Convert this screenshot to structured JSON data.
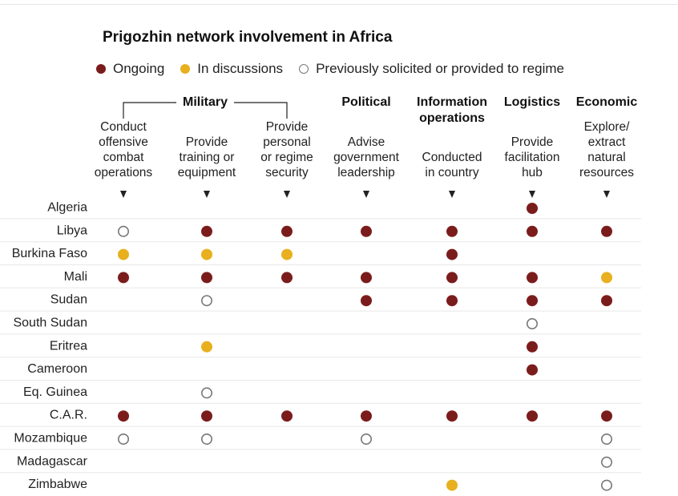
{
  "title": "Prigozhin network involvement in Africa",
  "legend": [
    {
      "label": "Ongoing",
      "status": "ongoing"
    },
    {
      "label": "In discussions",
      "status": "discussions"
    },
    {
      "label": "Previously solicited or provided to regime",
      "status": "previous"
    }
  ],
  "colors": {
    "ongoing": "#7b1c1c",
    "discussions": "#e8b01e",
    "previous": "#777777",
    "text": "#222222",
    "rule": "#e8e8e8"
  },
  "chart_data": {
    "type": "table",
    "title": "Prigozhin network involvement in Africa",
    "category_groups": [
      {
        "label": "Military",
        "columns": [
          0,
          1,
          2
        ]
      },
      {
        "label": "Political",
        "columns": [
          3
        ]
      },
      {
        "label": "Information operations",
        "columns": [
          4
        ]
      },
      {
        "label": "Logistics",
        "columns": [
          5
        ]
      },
      {
        "label": "Economic",
        "columns": [
          6
        ]
      }
    ],
    "columns": [
      "Conduct offensive combat operations",
      "Provide training or equipment",
      "Provide personal or regime security",
      "Advise government leadership",
      "Conducted in country",
      "Provide facilitation hub",
      "Explore/ extract natural resources"
    ],
    "rows": [
      {
        "country": "Algeria",
        "values": [
          null,
          null,
          null,
          null,
          null,
          "ongoing",
          null
        ]
      },
      {
        "country": "Libya",
        "values": [
          "previous",
          "ongoing",
          "ongoing",
          "ongoing",
          "ongoing",
          "ongoing",
          "ongoing"
        ]
      },
      {
        "country": "Burkina Faso",
        "values": [
          "discussions",
          "discussions",
          "discussions",
          null,
          "ongoing",
          null,
          null
        ]
      },
      {
        "country": "Mali",
        "values": [
          "ongoing",
          "ongoing",
          "ongoing",
          "ongoing",
          "ongoing",
          "ongoing",
          "discussions"
        ]
      },
      {
        "country": "Sudan",
        "values": [
          null,
          "previous",
          null,
          "ongoing",
          "ongoing",
          "ongoing",
          "ongoing"
        ]
      },
      {
        "country": "South Sudan",
        "values": [
          null,
          null,
          null,
          null,
          null,
          "previous",
          null
        ]
      },
      {
        "country": "Eritrea",
        "values": [
          null,
          "discussions",
          null,
          null,
          null,
          "ongoing",
          null
        ]
      },
      {
        "country": "Cameroon",
        "values": [
          null,
          null,
          null,
          null,
          null,
          "ongoing",
          null
        ]
      },
      {
        "country": "Eq. Guinea",
        "values": [
          null,
          "previous",
          null,
          null,
          null,
          null,
          null
        ]
      },
      {
        "country": "C.A.R.",
        "values": [
          "ongoing",
          "ongoing",
          "ongoing",
          "ongoing",
          "ongoing",
          "ongoing",
          "ongoing"
        ]
      },
      {
        "country": "Mozambique",
        "values": [
          "previous",
          "previous",
          null,
          "previous",
          null,
          null,
          "previous"
        ]
      },
      {
        "country": "Madagascar",
        "values": [
          null,
          null,
          null,
          null,
          null,
          null,
          "previous"
        ]
      },
      {
        "country": "Zimbabwe",
        "values": [
          null,
          null,
          null,
          null,
          "discussions",
          null,
          "previous"
        ]
      }
    ]
  }
}
